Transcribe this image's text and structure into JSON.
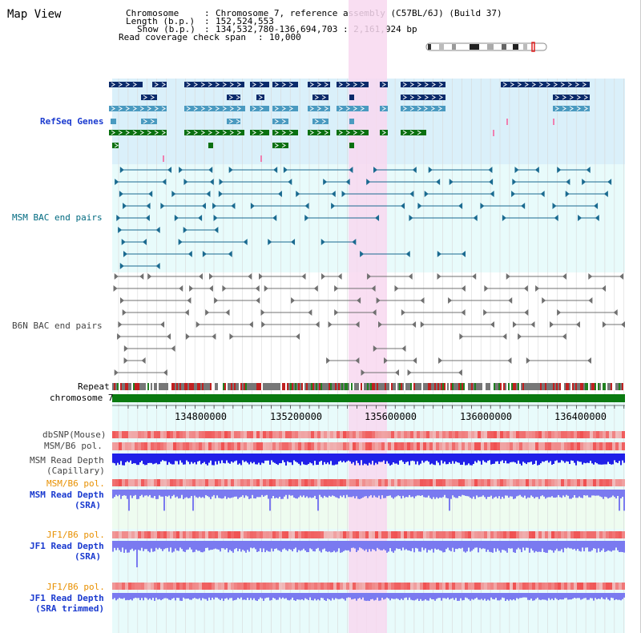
{
  "map_title": "Map View",
  "header": {
    "chromosome_label": "Chromosome",
    "chromosome_value": "Chromosome 7, reference assembly (C57BL/6J) (Build 37)",
    "length_label": "Length (b.p.)",
    "length_value": "152,524,553",
    "show_label": "Show (b.p.)",
    "show_value": "134,532,780-136,694,703 : 2,161,924 bp",
    "read_span_label": "Read coverage check span",
    "read_span_value": "10,000"
  },
  "tracks": {
    "refseq": "RefSeq Genes",
    "msm_bac": "MSM BAC end pairs",
    "b6n_bac": "B6N BAC end pairs",
    "repeat": "Repeat",
    "chromosome": "chromosome 7",
    "dbsnp": "dbSNP(Mouse)",
    "msm_b6_pol_1": "MSM/B6 pol.",
    "msm_read_depth_cap_1": "MSM Read Depth",
    "msm_read_depth_cap_2": "(Capillary)",
    "msm_b6_pol_2": "MSM/B6 pol.",
    "msm_read_depth_sra_1": "MSM Read Depth",
    "msm_read_depth_sra_2": "(SRA)",
    "jf1_b6_pol_1": "JF1/B6 pol.",
    "jf1_read_depth_sra_1": "JF1 Read Depth",
    "jf1_read_depth_sra_2": "(SRA)",
    "jf1_b6_pol_2": "JF1/B6 pol.",
    "jf1_read_depth_trim_1": "JF1 Read Depth",
    "jf1_read_depth_trim_2": "(SRA trimmed)"
  },
  "axis": {
    "ticks": [
      "134800000",
      "135200000",
      "135600000",
      "136000000",
      "136400000"
    ]
  },
  "colors": {
    "refseq_bg": "#daf0fa",
    "track_bg": "#e8fbfb",
    "highlight": "#f8d8f0",
    "gene_navy": "#0a2a6a",
    "gene_blue": "#4a9ac0",
    "gene_green": "#0a7010",
    "bac_msm": "#1a6a90",
    "bac_b6n": "#707070",
    "chromosome_bar": "#0a7a10",
    "depth_blue": "#2020e8",
    "depth_light": "#7a7af0",
    "pol_red": "#e83030",
    "label_blue": "#1a3acf",
    "label_orange": "#e89000",
    "label_teal": "#006a80",
    "label_gray": "#444444"
  }
}
